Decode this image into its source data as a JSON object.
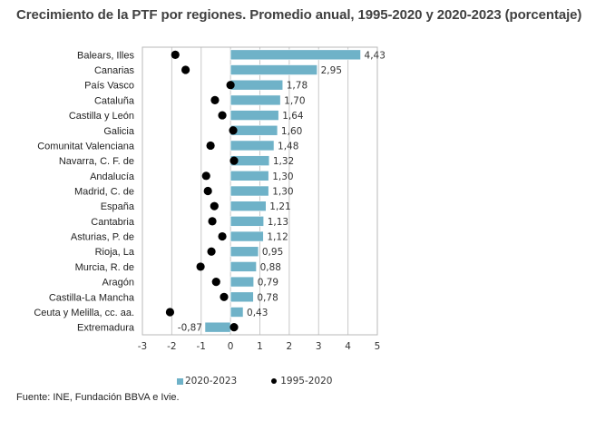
{
  "chart_data": {
    "type": "bar",
    "orientation": "horizontal",
    "title": "Crecimiento de la PTF por regiones. Promedio anual, 1995-2020 y 2020-2023 (porcentaje)",
    "xlabel": "",
    "ylabel": "",
    "xlim": [
      -3,
      5
    ],
    "xticks": [
      -3,
      -2,
      -1,
      0,
      1,
      2,
      3,
      4,
      5
    ],
    "xtick_labels": [
      "-3",
      "-2",
      "-1",
      "0",
      "1",
      "2",
      "3",
      "4",
      "5"
    ],
    "grid": true,
    "legend_position": "bottom",
    "categories": [
      "Balears, Illes",
      "Canarias",
      "País Vasco",
      "Cataluña",
      "Castilla y León",
      "Galicia",
      "Comunitat Valenciana",
      "Navarra, C. F. de",
      "Andalucía",
      "Madrid, C. de",
      "España",
      "Cantabria",
      "Asturias, P. de",
      "Rioja, La",
      "Murcia, R. de",
      "Aragón",
      "Castilla-La Mancha",
      "Ceuta y Melilla, cc. aa.",
      "Extremadura"
    ],
    "series": [
      {
        "name": "2020-2023",
        "type": "bar",
        "color": "#6fb2c8",
        "values": [
          4.43,
          2.95,
          1.78,
          1.7,
          1.64,
          1.6,
          1.48,
          1.32,
          1.3,
          1.3,
          1.21,
          1.13,
          1.12,
          0.95,
          0.88,
          0.79,
          0.78,
          0.43,
          -0.87
        ],
        "labels": [
          "4,43",
          "2,95",
          "1,78",
          "1,70",
          "1,64",
          "1,60",
          "1,48",
          "1,32",
          "1,30",
          "1,30",
          "1,21",
          "1,13",
          "1,12",
          "0,95",
          "0,88",
          "0,79",
          "0,78",
          "0,43",
          "-0,87"
        ]
      },
      {
        "name": "1995-2020",
        "type": "scatter",
        "color": "#000000",
        "values": [
          -1.88,
          -1.53,
          0.0,
          -0.53,
          -0.28,
          0.09,
          -0.68,
          0.12,
          -0.83,
          -0.77,
          -0.55,
          -0.62,
          -0.28,
          -0.65,
          -1.02,
          -0.49,
          -0.22,
          -2.06,
          0.12
        ]
      }
    ]
  },
  "legend": {
    "bar_label": "2020-2023",
    "dot_label": "1995-2020"
  },
  "source": "Fuente: INE, Fundación BBVA e Ivie."
}
